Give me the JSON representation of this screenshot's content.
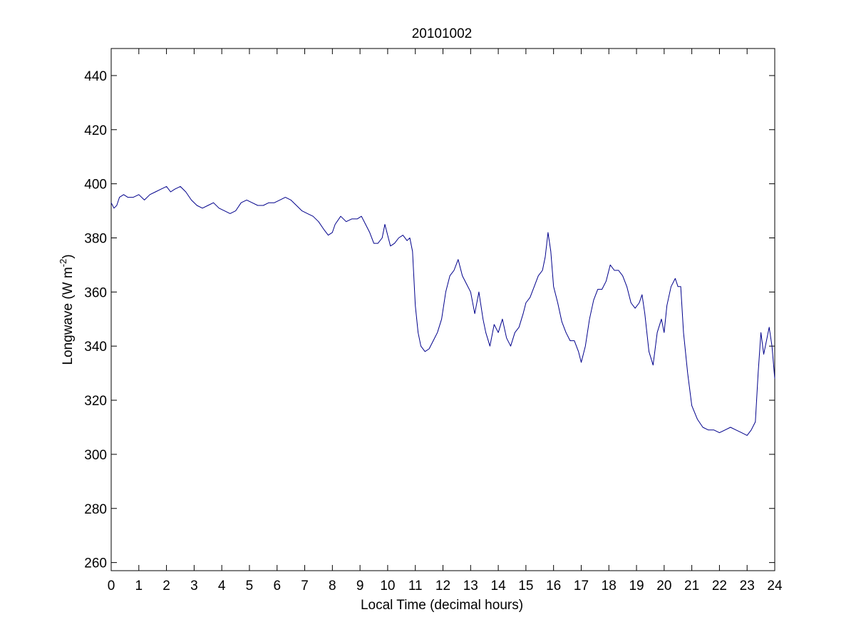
{
  "chart_data": {
    "type": "line",
    "title": "20101002",
    "xlabel": "Local Time (decimal hours)",
    "ylabel": {
      "prefix": "Longwave (W m",
      "superscript": "-2",
      "suffix": ")"
    },
    "xlim": [
      0,
      24
    ],
    "ylim": [
      257,
      450
    ],
    "xticks": [
      0,
      1,
      2,
      3,
      4,
      5,
      6,
      7,
      8,
      9,
      10,
      11,
      12,
      13,
      14,
      15,
      16,
      17,
      18,
      19,
      20,
      21,
      22,
      23,
      24
    ],
    "yticks": [
      260,
      280,
      300,
      320,
      340,
      360,
      380,
      400,
      420,
      440
    ],
    "grid": false,
    "line_color": "#00008b",
    "series": [
      {
        "x": [
          0,
          0.1,
          0.2,
          0.3,
          0.45,
          0.6,
          0.8,
          1.0,
          1.2,
          1.4,
          1.6,
          1.8,
          2.0,
          2.15,
          2.3,
          2.5,
          2.7,
          2.9,
          3.1,
          3.3,
          3.5,
          3.7,
          3.9,
          4.1,
          4.3,
          4.5,
          4.7,
          4.9,
          5.1,
          5.3,
          5.5,
          5.7,
          5.9,
          6.1,
          6.3,
          6.5,
          6.7,
          6.9,
          7.1,
          7.3,
          7.5,
          7.7,
          7.85,
          8.0,
          8.1,
          8.3,
          8.5,
          8.7,
          8.9,
          9.05,
          9.2,
          9.35,
          9.5,
          9.65,
          9.8,
          9.9,
          10.0,
          10.1,
          10.25,
          10.4,
          10.55,
          10.7,
          10.8,
          10.9,
          11.0,
          11.1,
          11.2,
          11.35,
          11.5,
          11.65,
          11.8,
          11.95,
          12.1,
          12.25,
          12.4,
          12.55,
          12.7,
          12.85,
          13.0,
          13.15,
          13.3,
          13.45,
          13.55,
          13.7,
          13.85,
          14.0,
          14.15,
          14.3,
          14.45,
          14.6,
          14.75,
          14.9,
          15.0,
          15.15,
          15.3,
          15.45,
          15.6,
          15.7,
          15.8,
          15.9,
          16.0,
          16.15,
          16.3,
          16.45,
          16.6,
          16.75,
          16.9,
          17.0,
          17.15,
          17.3,
          17.45,
          17.6,
          17.75,
          17.9,
          18.05,
          18.2,
          18.35,
          18.5,
          18.65,
          18.8,
          18.95,
          19.1,
          19.2,
          19.3,
          19.45,
          19.6,
          19.75,
          19.9,
          20.0,
          20.1,
          20.25,
          20.4,
          20.5,
          20.6,
          20.7,
          20.85,
          21.0,
          21.2,
          21.4,
          21.6,
          21.8,
          22.0,
          22.2,
          22.4,
          22.6,
          22.8,
          23.0,
          23.15,
          23.3,
          23.4,
          23.5,
          23.6,
          23.7,
          23.8,
          23.9,
          24.0
        ],
        "y": [
          393,
          391,
          392,
          395,
          396,
          395,
          395,
          396,
          394,
          396,
          397,
          398,
          399,
          397,
          398,
          399,
          397,
          394,
          392,
          391,
          392,
          393,
          391,
          390,
          389,
          390,
          393,
          394,
          393,
          392,
          392,
          393,
          393,
          394,
          395,
          394,
          392,
          390,
          389,
          388,
          386,
          383,
          381,
          382,
          385,
          388,
          386,
          387,
          387,
          388,
          385,
          382,
          378,
          378,
          380,
          385,
          381,
          377,
          378,
          380,
          381,
          379,
          380,
          375,
          355,
          345,
          340,
          338,
          339,
          342,
          345,
          350,
          360,
          366,
          368,
          372,
          366,
          363,
          360,
          352,
          360,
          350,
          345,
          340,
          348,
          345,
          350,
          343,
          340,
          345,
          347,
          352,
          356,
          358,
          362,
          366,
          368,
          373,
          382,
          375,
          362,
          356,
          349,
          345,
          342,
          342,
          338,
          334,
          340,
          350,
          357,
          361,
          361,
          364,
          370,
          368,
          368,
          366,
          362,
          356,
          354,
          356,
          359,
          352,
          338,
          333,
          345,
          350,
          345,
          355,
          362,
          365,
          362,
          362,
          345,
          330,
          318,
          313,
          310,
          309,
          309,
          308,
          309,
          310,
          309,
          308,
          307,
          309,
          312,
          330,
          345,
          337,
          342,
          347,
          340,
          328
        ]
      }
    ]
  }
}
